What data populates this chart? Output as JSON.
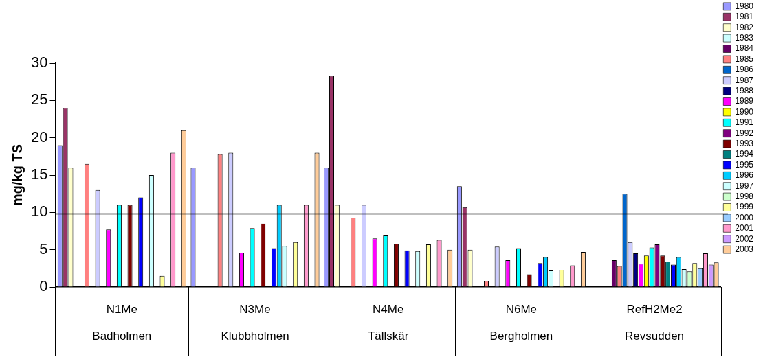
{
  "chart_data": {
    "type": "bar",
    "ylabel": "mg/kg TS",
    "categories": [
      "N1Me\nBadholmen",
      "N3Me\nKlubbholmen",
      "N4Me\nTällskär",
      "N6Me\nBergholmen",
      "RefH2Me2\nRevsudden"
    ],
    "ylim": [
      0,
      30
    ],
    "yticks": [
      0,
      5,
      10,
      15,
      20,
      25,
      30
    ],
    "grid": false,
    "legend": "top right",
    "ref_lines": [
      {
        "axis": "y",
        "value": 9.8,
        "color": "#000000"
      }
    ],
    "series": [
      {
        "name": "1980",
        "color": "#9999ff",
        "values": [
          19,
          16,
          16,
          13.5,
          null
        ]
      },
      {
        "name": "1981",
        "color": "#993366",
        "values": [
          24,
          null,
          28.3,
          10.7,
          null
        ]
      },
      {
        "name": "1982",
        "color": "#ffffcc",
        "values": [
          16,
          null,
          11,
          5,
          null
        ]
      },
      {
        "name": "1983",
        "color": "#ccffff",
        "values": [
          null,
          null,
          null,
          null,
          null
        ]
      },
      {
        "name": "1984",
        "color": "#660066",
        "values": [
          null,
          null,
          null,
          null,
          3.6
        ]
      },
      {
        "name": "1985",
        "color": "#ff8080",
        "values": [
          16.5,
          17.8,
          9.3,
          0.8,
          2.8
        ]
      },
      {
        "name": "1986",
        "color": "#0066cc",
        "values": [
          null,
          null,
          null,
          null,
          12.5
        ]
      },
      {
        "name": "1987",
        "color": "#ccccff",
        "values": [
          13,
          18,
          11,
          5.4,
          6
        ]
      },
      {
        "name": "1988",
        "color": "#000080",
        "values": [
          null,
          null,
          null,
          null,
          4.5
        ]
      },
      {
        "name": "1989",
        "color": "#ff00ff",
        "values": [
          7.7,
          4.6,
          6.5,
          3.6,
          3.1
        ]
      },
      {
        "name": "1990",
        "color": "#ffff00",
        "values": [
          null,
          null,
          null,
          null,
          4.2
        ]
      },
      {
        "name": "1991",
        "color": "#00ffff",
        "values": [
          11,
          7.9,
          6.9,
          5.2,
          5.3
        ]
      },
      {
        "name": "1992",
        "color": "#800080",
        "values": [
          null,
          null,
          null,
          null,
          5.7
        ]
      },
      {
        "name": "1993",
        "color": "#800000",
        "values": [
          11,
          8.5,
          5.8,
          1.7,
          4.2
        ]
      },
      {
        "name": "1994",
        "color": "#008080",
        "values": [
          null,
          null,
          null,
          null,
          3.4
        ]
      },
      {
        "name": "1995",
        "color": "#0000ff",
        "values": [
          12,
          5.2,
          4.9,
          3.2,
          3
        ]
      },
      {
        "name": "1996",
        "color": "#00ccff",
        "values": [
          null,
          11,
          null,
          4,
          4
        ]
      },
      {
        "name": "1997",
        "color": "#ccffff",
        "values": [
          15,
          5.5,
          4.8,
          2.2,
          2.4
        ]
      },
      {
        "name": "1998",
        "color": "#ccffcc",
        "values": [
          null,
          null,
          null,
          null,
          2.1
        ]
      },
      {
        "name": "1999",
        "color": "#ffff99",
        "values": [
          1.5,
          6,
          5.7,
          2.3,
          3.2
        ]
      },
      {
        "name": "2000",
        "color": "#99ccff",
        "values": [
          null,
          null,
          null,
          null,
          2.5
        ]
      },
      {
        "name": "2001",
        "color": "#ff99cc",
        "values": [
          18,
          11,
          6.3,
          2.9,
          4.5
        ]
      },
      {
        "name": "2002",
        "color": "#cc99ff",
        "values": [
          null,
          null,
          null,
          null,
          3
        ]
      },
      {
        "name": "2003",
        "color": "#ffcc99",
        "values": [
          21,
          18,
          5,
          4.7,
          3.3
        ]
      }
    ]
  }
}
